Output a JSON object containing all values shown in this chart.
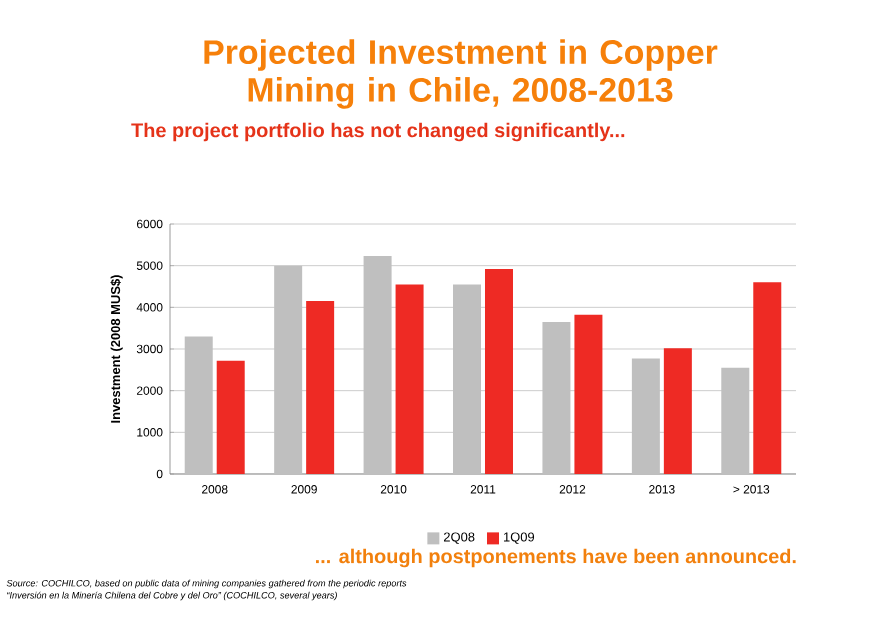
{
  "chart_data": {
    "type": "bar",
    "title": "Projected Investment in Copper Mining in Chile, 2008-2013",
    "subtitle": "The project portfolio has not changed significantly...",
    "ylabel": "Investment (2008 MUS$)",
    "categories": [
      "2008",
      "2009",
      "2010",
      "2011",
      "2012",
      "2013",
      "> 2013"
    ],
    "series": [
      {
        "name": "2Q08",
        "color": "#bfbfbf",
        "values": [
          3300,
          5000,
          5230,
          4550,
          3650,
          2770,
          2550
        ]
      },
      {
        "name": "1Q09",
        "color": "#ee2a24",
        "values": [
          2720,
          4150,
          4550,
          4920,
          3820,
          3020,
          4600
        ]
      }
    ],
    "ylim": [
      0,
      6000
    ],
    "yticks": [
      0,
      1000,
      2000,
      3000,
      4000,
      5000,
      6000
    ],
    "grid": "y",
    "legend": "bottom",
    "annotations": [
      "... although postponements have been announced.",
      "Source: COCHILCO, based on public data of  mining companies  gathered from the periodic reports",
      "“Inversión en la Minería Chilena del Cobre y del Oro” (COCHILCO, several years)"
    ]
  }
}
